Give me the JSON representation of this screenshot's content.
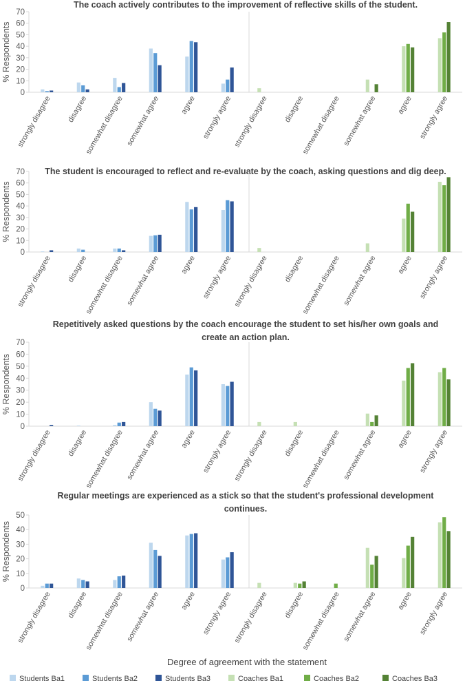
{
  "figure": {
    "xlabel": "Degree of agreement with the statement"
  },
  "legend": {
    "items": [
      {
        "label": "Students Ba1",
        "color": "#bdd7ee"
      },
      {
        "label": "Students Ba2",
        "color": "#5b9bd5"
      },
      {
        "label": "Students Ba3",
        "color": "#2f5597"
      },
      {
        "label": "Coaches Ba1",
        "color": "#c5e0b4"
      },
      {
        "label": "Coaches Ba2",
        "color": "#70ad47"
      },
      {
        "label": "Coaches Ba3",
        "color": "#548235"
      }
    ]
  },
  "chart_data": [
    {
      "type": "bar",
      "title_lines": [
        "The coach actively contributes to the improvement of reflective skills of the student."
      ],
      "ylabel": "% Respondents",
      "ylim": [
        0,
        70
      ],
      "yticks": [
        0,
        10,
        20,
        30,
        40,
        50,
        60,
        70
      ],
      "groups": [
        {
          "name": "Students",
          "categories": [
            "strongly disagree",
            "disagree",
            "somewhat disagree",
            "somewhat agree",
            "agree",
            "strongly agree"
          ],
          "series": [
            {
              "name": "Students Ba1",
              "values": [
                2.5,
                8.5,
                12.5,
                38,
                31,
                7.5
              ]
            },
            {
              "name": "Students Ba2",
              "values": [
                1,
                6,
                4.5,
                34,
                44.5,
                11
              ]
            },
            {
              "name": "Students Ba3",
              "values": [
                1.5,
                2.5,
                8,
                23.5,
                43.5,
                21.5
              ]
            }
          ]
        },
        {
          "name": "Coaches",
          "categories": [
            "strongly disagree",
            "disagree",
            "somewhat disagree",
            "somewhat agree",
            "agree",
            "strongly agree"
          ],
          "series": [
            {
              "name": "Coaches Ba1",
              "values": [
                3.5,
                0,
                0,
                11,
                40,
                47
              ]
            },
            {
              "name": "Coaches Ba2",
              "values": [
                0,
                0,
                0,
                0,
                42,
                52
              ]
            },
            {
              "name": "Coaches Ba3",
              "values": [
                0,
                0,
                0,
                7,
                39,
                61
              ]
            }
          ]
        }
      ]
    },
    {
      "type": "bar",
      "title_lines": [
        "The student is encouraged to reflect and re-evaluate by  the coach, asking questions and dig deep."
      ],
      "ylabel": "% Respondents",
      "ylim": [
        0,
        70
      ],
      "yticks": [
        0,
        10,
        20,
        30,
        40,
        50,
        60,
        70
      ],
      "groups": [
        {
          "name": "Students",
          "categories": [
            "strongly disagree",
            "disagree",
            "somewhat disagree",
            "somewhat agree",
            "agree",
            "strongly agree"
          ],
          "series": [
            {
              "name": "Students Ba1",
              "values": [
                0.5,
                3,
                3,
                14,
                43.5,
                36.5
              ]
            },
            {
              "name": "Students Ba2",
              "values": [
                0,
                2,
                3,
                14.5,
                37,
                45
              ]
            },
            {
              "name": "Students Ba3",
              "values": [
                1.5,
                0,
                1.5,
                15,
                39,
                44
              ]
            }
          ]
        },
        {
          "name": "Coaches",
          "categories": [
            "strongly disagree",
            "disagree",
            "somewhat disagree",
            "somewhat agree",
            "agree",
            "strongly agree"
          ],
          "series": [
            {
              "name": "Coaches Ba1",
              "values": [
                3.5,
                0,
                0,
                7.5,
                29,
                61
              ]
            },
            {
              "name": "Coaches Ba2",
              "values": [
                0,
                0,
                0,
                0,
                42,
                58
              ]
            },
            {
              "name": "Coaches Ba3",
              "values": [
                0,
                0,
                0,
                0,
                35,
                65
              ]
            }
          ]
        }
      ]
    },
    {
      "type": "bar",
      "title_lines": [
        "Repetitively asked questions by the coach encourage the student to set his/her own goals and",
        "create an action plan."
      ],
      "ylabel": "% Respondents",
      "ylim": [
        0,
        70
      ],
      "yticks": [
        0,
        10,
        20,
        30,
        40,
        50,
        60,
        70
      ],
      "groups": [
        {
          "name": "Students",
          "categories": [
            "strongly disagree",
            "disagree",
            "somewhat disagree",
            "somewhat agree",
            "agree",
            "strongly agree"
          ],
          "series": [
            {
              "name": "Students Ba1",
              "values": [
                0,
                0.5,
                1,
                20,
                43,
                35
              ]
            },
            {
              "name": "Students Ba2",
              "values": [
                0,
                0,
                3,
                14.5,
                49,
                33.5
              ]
            },
            {
              "name": "Students Ba3",
              "values": [
                1,
                0,
                3.5,
                13,
                46.5,
                37
              ]
            }
          ]
        },
        {
          "name": "Coaches",
          "categories": [
            "strongly disagree",
            "disagree",
            "somewhat disagree",
            "somewhat agree",
            "agree",
            "strongly agree"
          ],
          "series": [
            {
              "name": "Coaches Ba1",
              "values": [
                3.5,
                3.5,
                0,
                10.5,
                38,
                45
              ]
            },
            {
              "name": "Coaches Ba2",
              "values": [
                0,
                0,
                0,
                3.5,
                48.5,
                48.5
              ]
            },
            {
              "name": "Coaches Ba3",
              "values": [
                0,
                0,
                0,
                9,
                52.5,
                39
              ]
            }
          ]
        }
      ]
    },
    {
      "type": "bar",
      "title_lines": [
        "Regular meetings are experienced as a stick so that the student's professional development",
        "continues."
      ],
      "ylabel": "% Respondents",
      "ylim": [
        0,
        50
      ],
      "yticks": [
        0,
        10,
        20,
        30,
        40,
        50
      ],
      "groups": [
        {
          "name": "Students",
          "categories": [
            "strongly disagree",
            "disagree",
            "somewhat disagree",
            "somewhat agree",
            "agree",
            "strongly agree"
          ],
          "series": [
            {
              "name": "Students Ba1",
              "values": [
                1.5,
                6.5,
                5.5,
                31,
                36,
                19.5
              ]
            },
            {
              "name": "Students Ba2",
              "values": [
                3,
                5.5,
                8,
                26,
                37,
                21
              ]
            },
            {
              "name": "Students Ba3",
              "values": [
                3,
                4.5,
                8.5,
                22,
                37.5,
                24.5
              ]
            }
          ]
        },
        {
          "name": "Coaches",
          "categories": [
            "strongly disagree",
            "disagree",
            "somewhat disagree",
            "somewhat agree",
            "agree",
            "strongly agree"
          ],
          "series": [
            {
              "name": "Coaches Ba1",
              "values": [
                3.5,
                3.5,
                0,
                27.5,
                20.5,
                45
              ]
            },
            {
              "name": "Coaches Ba2",
              "values": [
                0,
                3,
                3,
                16,
                29,
                48.5
              ]
            },
            {
              "name": "Coaches Ba3",
              "values": [
                0,
                4.5,
                0,
                22,
                35,
                39
              ]
            }
          ]
        }
      ]
    }
  ]
}
